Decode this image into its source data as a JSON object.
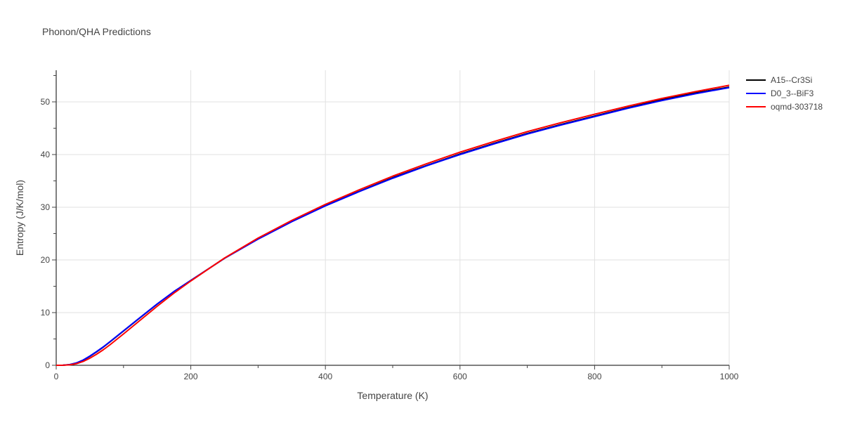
{
  "chart_data": {
    "type": "line",
    "title": "Phonon/QHA Predictions",
    "xlabel": "Temperature (K)",
    "ylabel": "Entropy (J/K/mol)",
    "xlim": [
      0,
      1000
    ],
    "ylim": [
      0,
      56
    ],
    "xticks": [
      0,
      200,
      400,
      600,
      800,
      1000
    ],
    "yticks": [
      0,
      10,
      20,
      30,
      40,
      50
    ],
    "grid": true,
    "legend_position": "top-right",
    "series": [
      {
        "name": "A15--Cr3Si",
        "color": "#000000",
        "x": [
          0,
          10,
          20,
          30,
          40,
          50,
          60,
          70,
          80,
          100,
          120,
          150,
          175,
          200,
          250,
          300,
          350,
          400,
          450,
          500,
          550,
          600,
          650,
          700,
          750,
          800,
          850,
          900,
          950,
          1000
        ],
        "y": [
          0,
          0.02,
          0.12,
          0.42,
          0.95,
          1.7,
          2.55,
          3.45,
          4.45,
          6.5,
          8.55,
          11.6,
          14.0,
          16.1,
          20.3,
          24.0,
          27.3,
          30.3,
          33.0,
          35.6,
          37.9,
          40.1,
          42.1,
          44.0,
          45.7,
          47.3,
          48.9,
          50.4,
          51.7,
          52.8
        ]
      },
      {
        "name": "D0_3--BiF3",
        "color": "#0000ff",
        "x": [
          0,
          10,
          20,
          30,
          40,
          50,
          60,
          70,
          80,
          100,
          120,
          150,
          175,
          200,
          250,
          300,
          350,
          400,
          450,
          500,
          550,
          600,
          650,
          700,
          750,
          800,
          850,
          900,
          950,
          1000
        ],
        "y": [
          0,
          0.02,
          0.13,
          0.45,
          1.0,
          1.75,
          2.6,
          3.5,
          4.5,
          6.55,
          8.6,
          11.65,
          14.0,
          16.1,
          20.3,
          23.95,
          27.25,
          30.25,
          32.95,
          35.5,
          37.85,
          40.0,
          42.0,
          43.9,
          45.6,
          47.2,
          48.8,
          50.25,
          51.55,
          52.7
        ]
      },
      {
        "name": "oqmd-303718",
        "color": "#ff0000",
        "x": [
          0,
          10,
          20,
          30,
          40,
          50,
          60,
          70,
          80,
          100,
          120,
          150,
          175,
          200,
          250,
          300,
          350,
          400,
          450,
          500,
          550,
          600,
          650,
          700,
          750,
          800,
          850,
          900,
          950,
          1000
        ],
        "y": [
          0,
          0.01,
          0.08,
          0.3,
          0.72,
          1.35,
          2.1,
          2.95,
          3.9,
          5.95,
          8.05,
          11.2,
          13.7,
          16.0,
          20.35,
          24.15,
          27.5,
          30.55,
          33.3,
          35.9,
          38.25,
          40.45,
          42.45,
          44.35,
          46.05,
          47.65,
          49.2,
          50.65,
          51.95,
          53.15
        ]
      }
    ]
  }
}
